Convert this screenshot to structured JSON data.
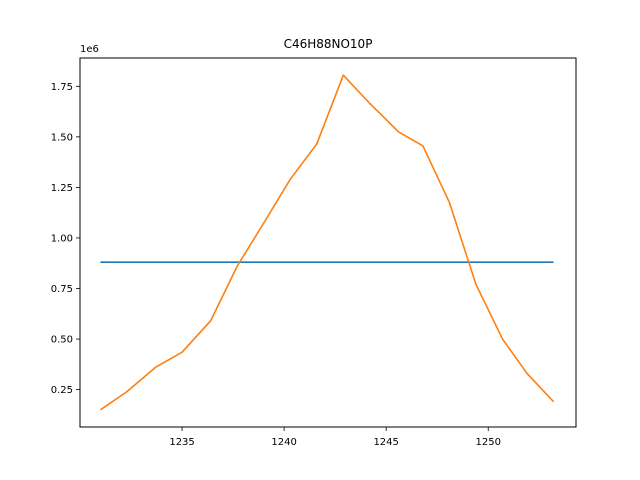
{
  "chart_data": {
    "type": "line",
    "title": "C46H88NO10P",
    "xlabel": "",
    "ylabel": "",
    "y_offset_label": "1e6",
    "xlim": [
      1230.0,
      1254.3
    ],
    "ylim": [
      65000,
      1890000
    ],
    "xticks": [
      1235,
      1240,
      1245,
      1250
    ],
    "yticks": [
      250000,
      500000,
      750000,
      1000000,
      1250000,
      1500000,
      1750000
    ],
    "ytick_labels": [
      "0.25",
      "0.50",
      "0.75",
      "1.00",
      "1.25",
      "1.50",
      "1.75"
    ],
    "grid": false,
    "series": [
      {
        "color": "#1f77b4",
        "x": [
          1231.0,
          1253.2
        ],
        "y": [
          880000,
          880000
        ]
      },
      {
        "color": "#ff7f0e",
        "x": [
          1231.0,
          1232.3,
          1233.7,
          1235.0,
          1236.4,
          1237.7,
          1239.1,
          1240.3,
          1241.6,
          1242.9,
          1244.2,
          1245.6,
          1246.8,
          1248.1,
          1249.4,
          1250.7,
          1251.9,
          1253.2
        ],
        "y": [
          150000,
          240000,
          360000,
          435000,
          590000,
          860000,
          1090000,
          1290000,
          1465000,
          1805000,
          1665000,
          1525000,
          1455000,
          1175000,
          770000,
          500000,
          330000,
          190000
        ]
      }
    ]
  }
}
